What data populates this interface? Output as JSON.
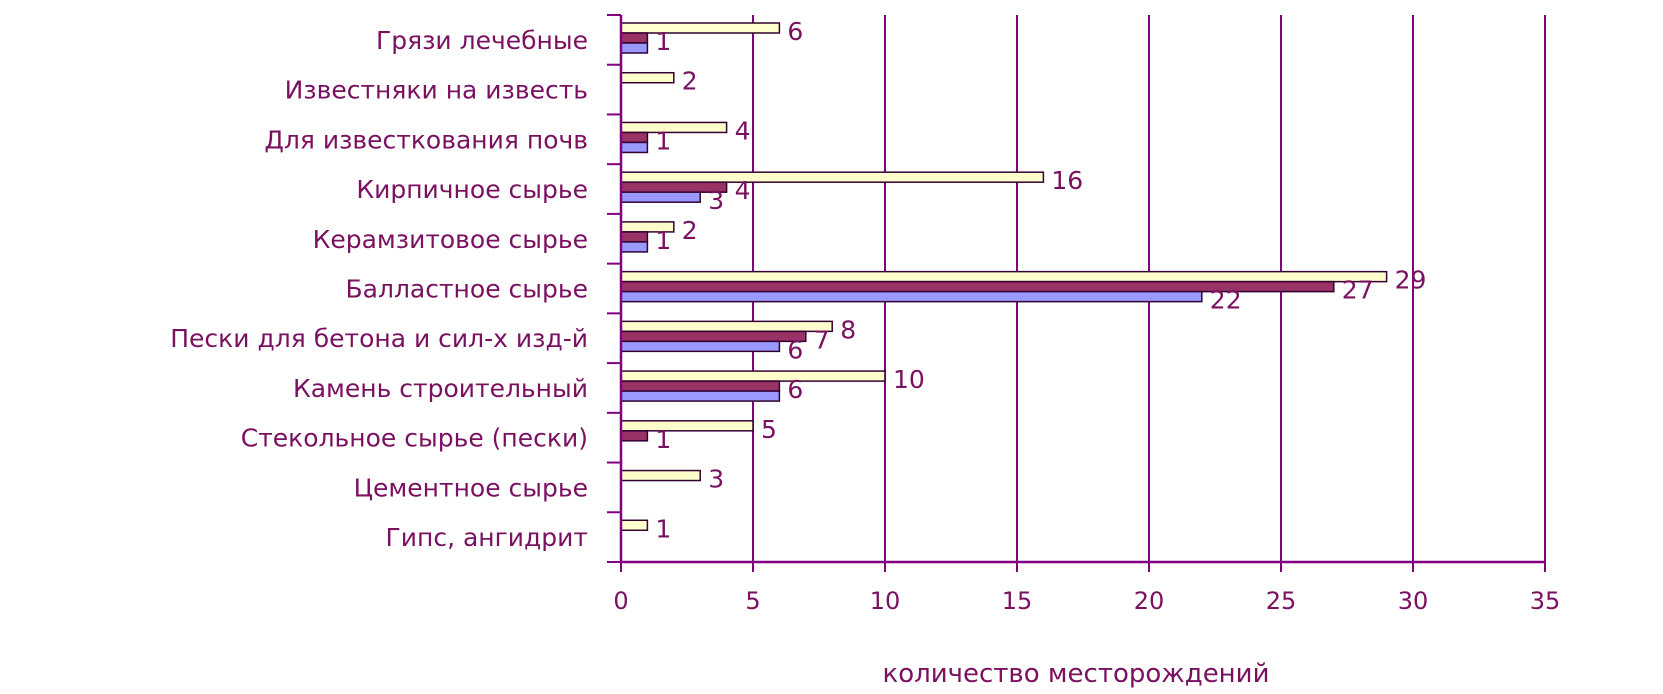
{
  "chart_data": {
    "type": "bar",
    "orientation": "horizontal",
    "categories": [
      "Грязи лечебные",
      "Известняки на известь",
      "Для известкования почв",
      "Кирпичное сырье",
      "Керамзитовое сырье",
      "Балластное сырье",
      "Пески для бетона и сил-х изд-й",
      "Камень строительный",
      "Стекольное сырье (пески)",
      "Цементное сырье",
      "Гипс, ангидрит"
    ],
    "series": [
      {
        "values": [
          6,
          2,
          4,
          16,
          2,
          29,
          8,
          10,
          5,
          3,
          1
        ],
        "color": "#ffffcc"
      },
      {
        "values": [
          1,
          0,
          1,
          4,
          1,
          27,
          7,
          6,
          1,
          0,
          0
        ],
        "color": "#993366"
      },
      {
        "values": [
          1,
          0,
          1,
          3,
          1,
          22,
          6,
          6,
          0,
          0,
          0
        ],
        "color": "#9999ff"
      }
    ],
    "value_labels": [
      [
        "6",
        "1",
        ""
      ],
      [
        "2",
        "",
        ""
      ],
      [
        "4",
        "1",
        ""
      ],
      [
        "16",
        "4",
        "3"
      ],
      [
        "2",
        "1",
        ""
      ],
      [
        "29",
        "27",
        "22"
      ],
      [
        "8",
        "7",
        "6"
      ],
      [
        "10",
        "6",
        ""
      ],
      [
        "5",
        "1",
        ""
      ],
      [
        "3",
        "",
        ""
      ],
      [
        "1",
        "",
        ""
      ]
    ],
    "xlabel": "количество месторождений",
    "xlim": [
      0,
      35
    ],
    "xticks": [
      "0",
      "5",
      "10",
      "15",
      "20",
      "25",
      "30",
      "35"
    ],
    "grid": "vertical",
    "colors": {
      "axis": "#800080",
      "text": "#7a1060",
      "bar_outline": "#330033"
    }
  }
}
